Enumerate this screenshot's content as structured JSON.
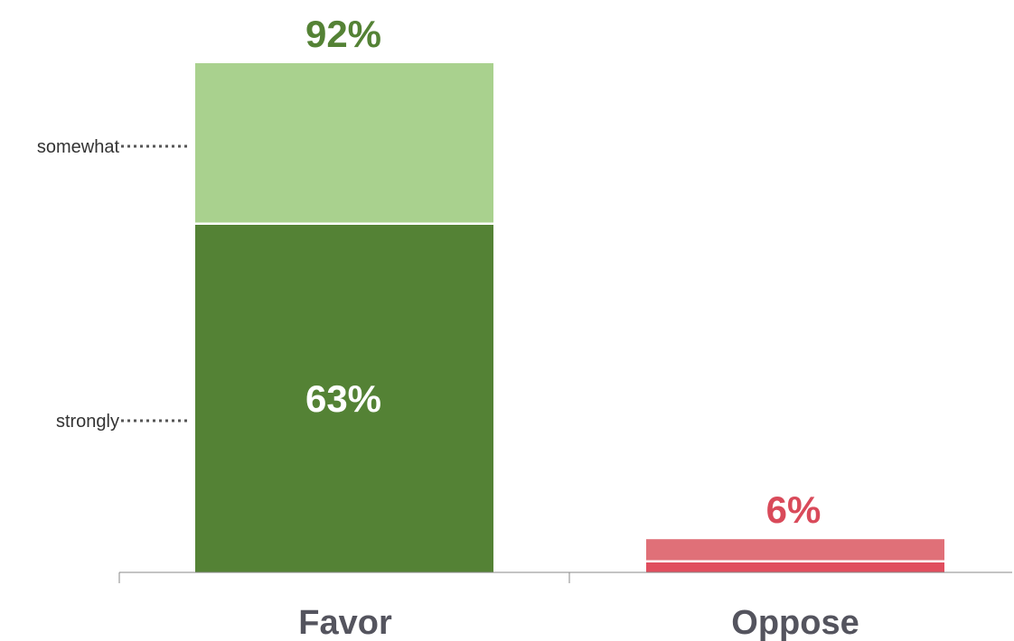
{
  "chart_data": {
    "type": "bar",
    "stacked": true,
    "categories": [
      "Favor",
      "Oppose"
    ],
    "series": [
      {
        "name": "strongly",
        "values": [
          63,
          2
        ]
      },
      {
        "name": "somewhat",
        "values": [
          29,
          4
        ]
      }
    ],
    "totals": [
      92,
      6
    ],
    "total_labels": [
      "92%",
      "6%"
    ],
    "inner_labels": [
      "63%",
      ""
    ],
    "series_labels": [
      "strongly",
      "somewhat"
    ],
    "ylim": [
      0,
      100
    ],
    "grid": false,
    "colors": {
      "favor_strongly": "#548235",
      "favor_somewhat": "#a9d18e",
      "oppose_strongly": "#e04e5e",
      "oppose_somewhat": "#e07078",
      "favor_text": "#548235",
      "oppose_text": "#d94a5a",
      "axis": "#888888",
      "category_text": "#54545e"
    }
  }
}
